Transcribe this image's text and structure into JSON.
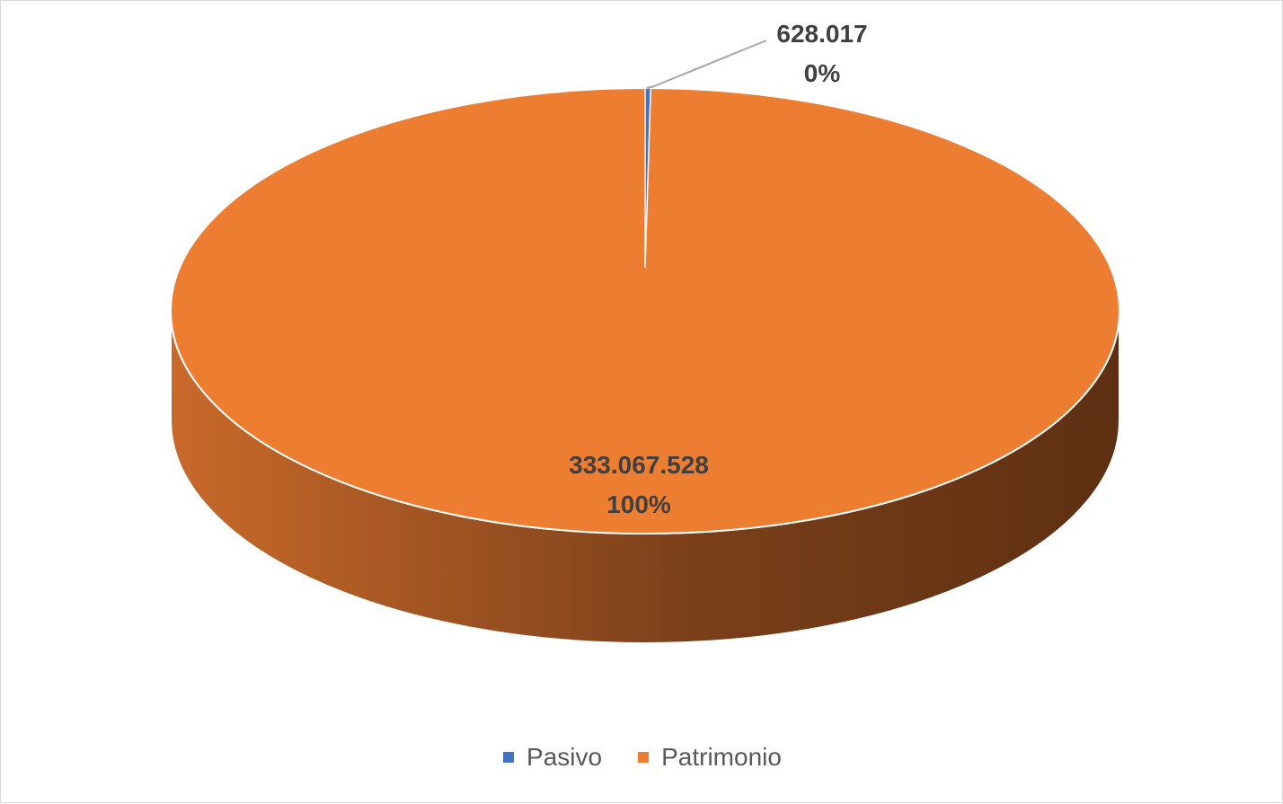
{
  "chart_data": {
    "type": "pie",
    "style": "3d",
    "categories": [
      "Pasivo",
      "Patrimonio"
    ],
    "values": [
      628017,
      333067528
    ],
    "value_labels": [
      "628.017",
      "333.067.528"
    ],
    "percent_labels": [
      "0%",
      "100%"
    ],
    "colors": [
      "#4472c4",
      "#ed7d31"
    ],
    "side_dark": "#5e2f12",
    "side_light": "#c0621f",
    "legend_position": "bottom",
    "title": ""
  }
}
